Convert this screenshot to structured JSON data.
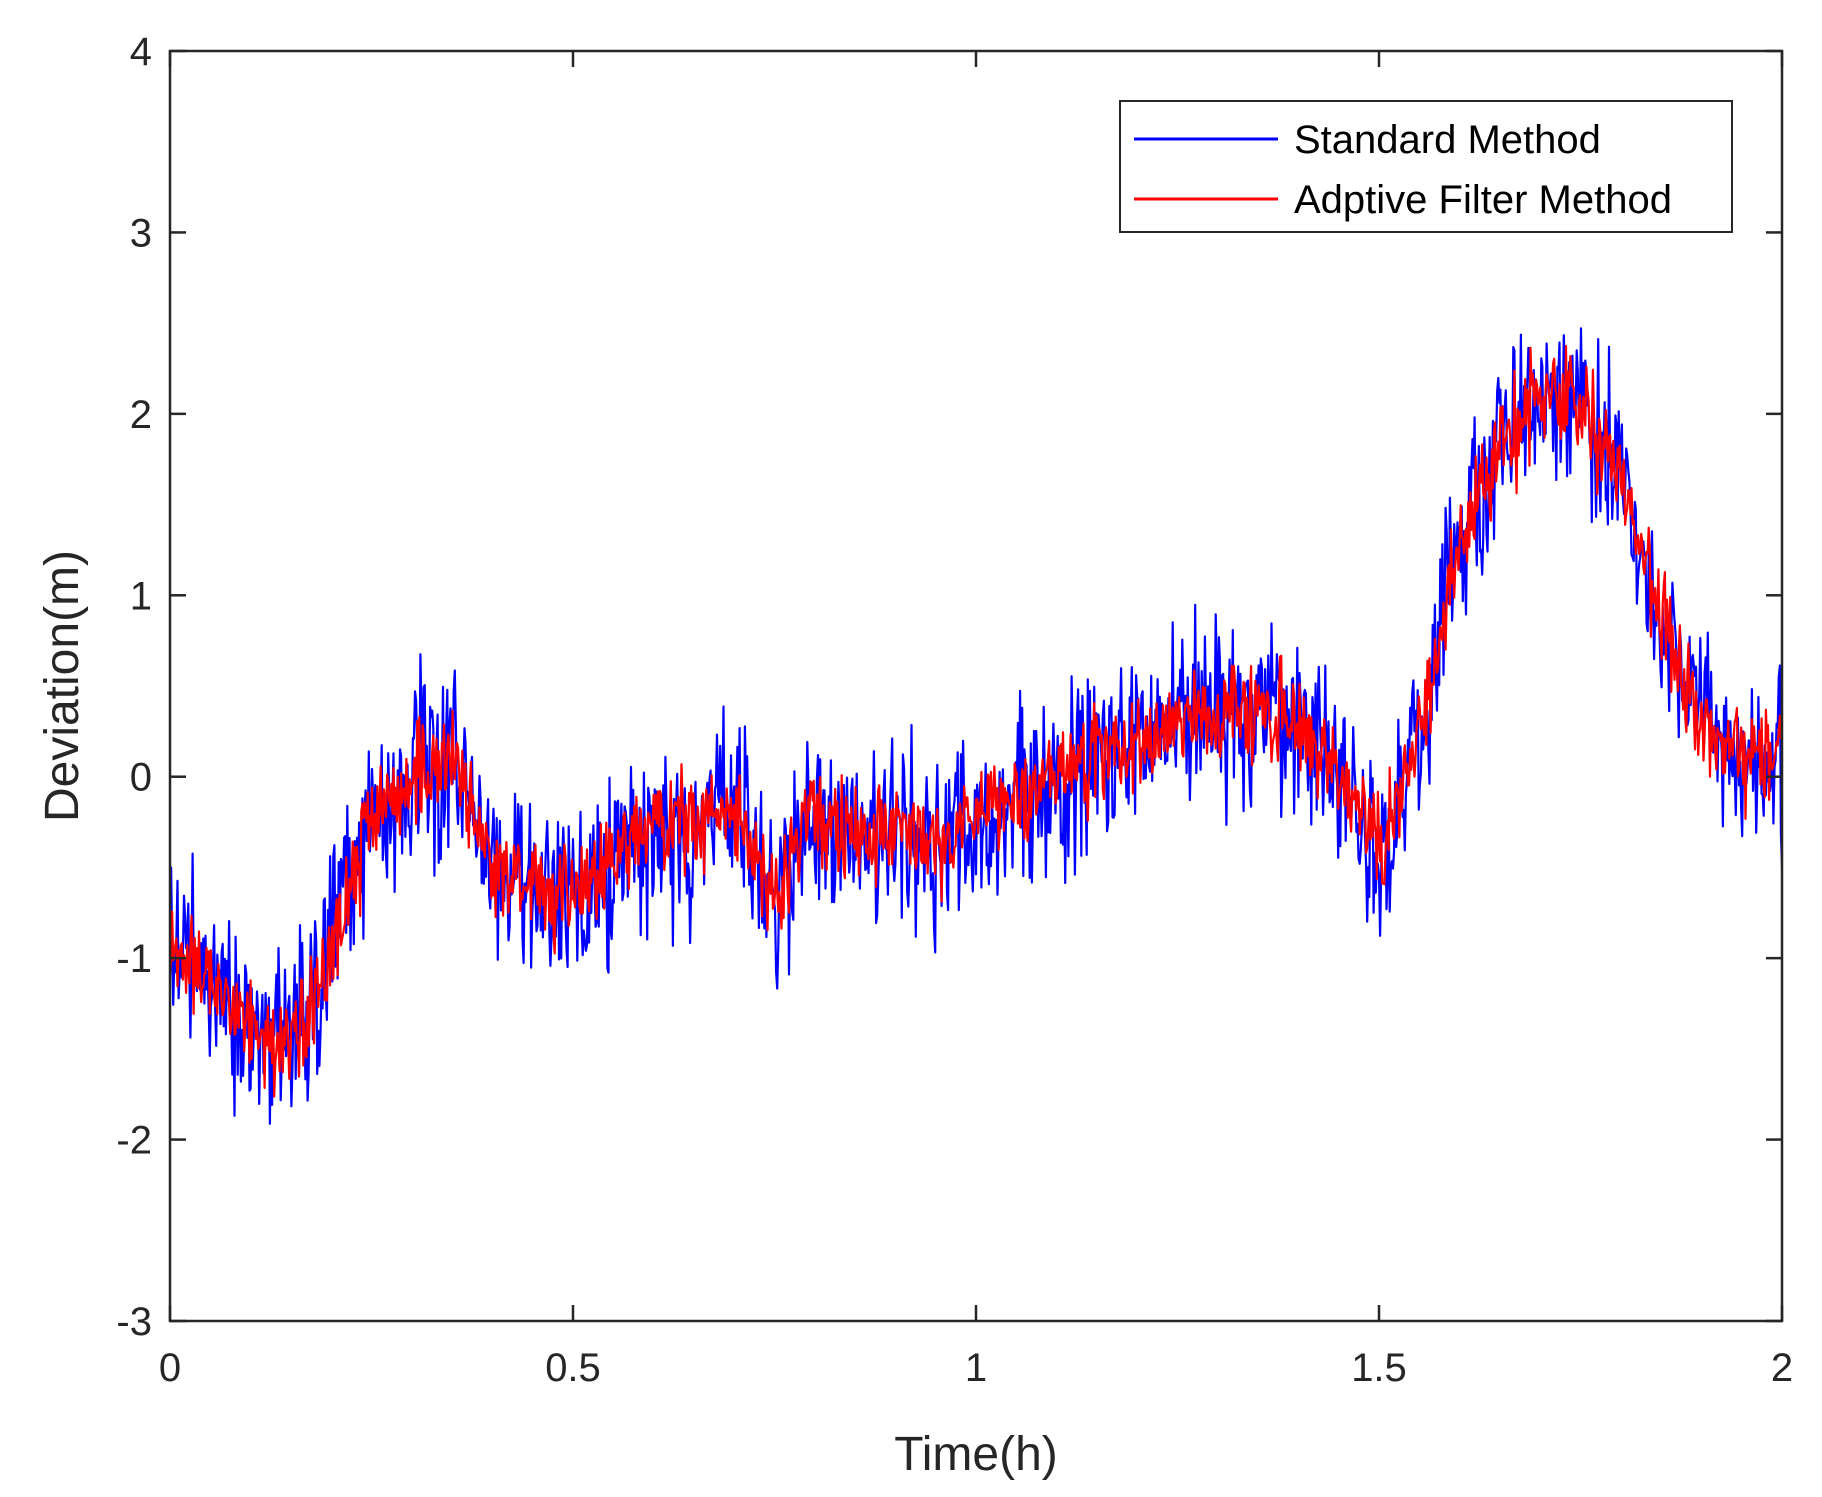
{
  "chart_data": {
    "type": "line",
    "title": "",
    "xlabel": "Time(h)",
    "ylabel": "Deviation(m)",
    "xlim": [
      0,
      2
    ],
    "ylim": [
      -3,
      4
    ],
    "x_ticks": [
      0,
      0.5,
      1,
      1.5,
      2
    ],
    "x_tick_labels": [
      "0",
      "0.5",
      "1",
      "1.5",
      "2"
    ],
    "y_ticks": [
      -3,
      -2,
      -1,
      0,
      1,
      2,
      3,
      4
    ],
    "y_tick_labels": [
      "-3",
      "-2",
      "-1",
      "0",
      "1",
      "2",
      "3",
      "4"
    ],
    "grid": false,
    "legend_position": "top-right",
    "series": [
      {
        "name": "Standard Method",
        "color": "#0000ff",
        "noise_amplitude": 0.75,
        "trend_x": [
          0,
          0.05,
          0.1,
          0.15,
          0.2,
          0.25,
          0.3,
          0.35,
          0.4,
          0.45,
          0.5,
          0.55,
          0.6,
          0.65,
          0.7,
          0.75,
          0.8,
          0.85,
          0.9,
          0.95,
          1.0,
          1.05,
          1.1,
          1.15,
          1.2,
          1.25,
          1.3,
          1.35,
          1.4,
          1.45,
          1.5,
          1.55,
          1.6,
          1.65,
          1.7,
          1.75,
          1.8,
          1.85,
          1.9,
          1.95,
          2.0
        ],
        "trend_y": [
          -0.9,
          -1.1,
          -1.4,
          -1.5,
          -1.0,
          -0.2,
          0.0,
          0.1,
          -0.5,
          -0.6,
          -0.7,
          -0.5,
          -0.2,
          -0.3,
          -0.2,
          -0.7,
          -0.2,
          -0.3,
          -0.3,
          -0.4,
          -0.2,
          -0.1,
          0.0,
          0.1,
          0.2,
          0.3,
          0.3,
          0.4,
          0.3,
          0.0,
          -0.4,
          0.2,
          1.3,
          1.8,
          2.1,
          2.0,
          1.7,
          0.9,
          0.3,
          0.1,
          0.1
        ]
      },
      {
        "name": "Adptive Filter Method",
        "color": "#ff0000",
        "noise_amplitude": 0.4,
        "trend_x": [
          0,
          0.05,
          0.1,
          0.15,
          0.2,
          0.25,
          0.3,
          0.35,
          0.4,
          0.45,
          0.5,
          0.55,
          0.6,
          0.65,
          0.7,
          0.75,
          0.8,
          0.85,
          0.9,
          0.95,
          1.0,
          1.05,
          1.1,
          1.15,
          1.2,
          1.25,
          1.3,
          1.35,
          1.4,
          1.45,
          1.5,
          1.55,
          1.6,
          1.65,
          1.7,
          1.75,
          1.8,
          1.85,
          1.9,
          1.95,
          2.0
        ],
        "trend_y": [
          -0.9,
          -1.1,
          -1.4,
          -1.5,
          -1.0,
          -0.2,
          0.0,
          0.1,
          -0.5,
          -0.6,
          -0.7,
          -0.5,
          -0.2,
          -0.3,
          -0.2,
          -0.7,
          -0.2,
          -0.3,
          -0.3,
          -0.4,
          -0.2,
          -0.1,
          0.0,
          0.1,
          0.2,
          0.3,
          0.3,
          0.4,
          0.3,
          0.0,
          -0.4,
          0.2,
          1.3,
          1.8,
          2.1,
          2.0,
          1.7,
          0.9,
          0.3,
          0.1,
          0.1
        ]
      }
    ]
  }
}
